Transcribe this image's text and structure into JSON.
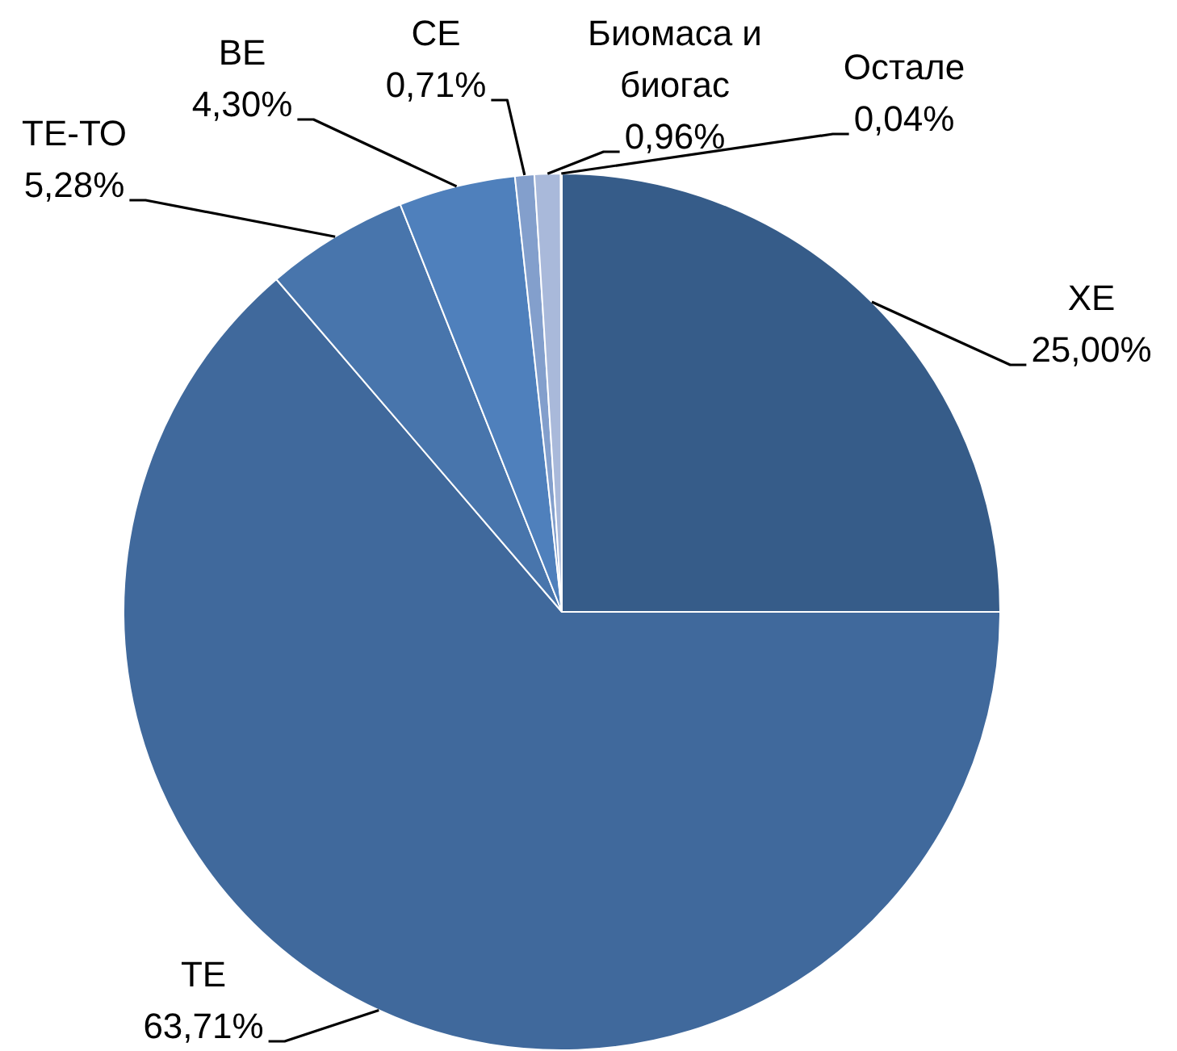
{
  "chart_data": {
    "type": "pie",
    "categories": [
      "ХЕ",
      "ТЕ",
      "ТЕ-ТО",
      "ВЕ",
      "СЕ",
      "Биомаса и биогас",
      "Остале"
    ],
    "values": [
      25.0,
      63.71,
      5.28,
      4.3,
      0.71,
      0.96,
      0.04
    ],
    "value_labels": [
      "25,00%",
      "63,71%",
      "5,28%",
      "4,30%",
      "0,71%",
      "0,96%",
      "0,04%"
    ],
    "colors": [
      "#365c89",
      "#40699c",
      "#4875ac",
      "#4f80bc",
      "#839fcc",
      "#a9b9da",
      "#cdd7eb"
    ]
  }
}
